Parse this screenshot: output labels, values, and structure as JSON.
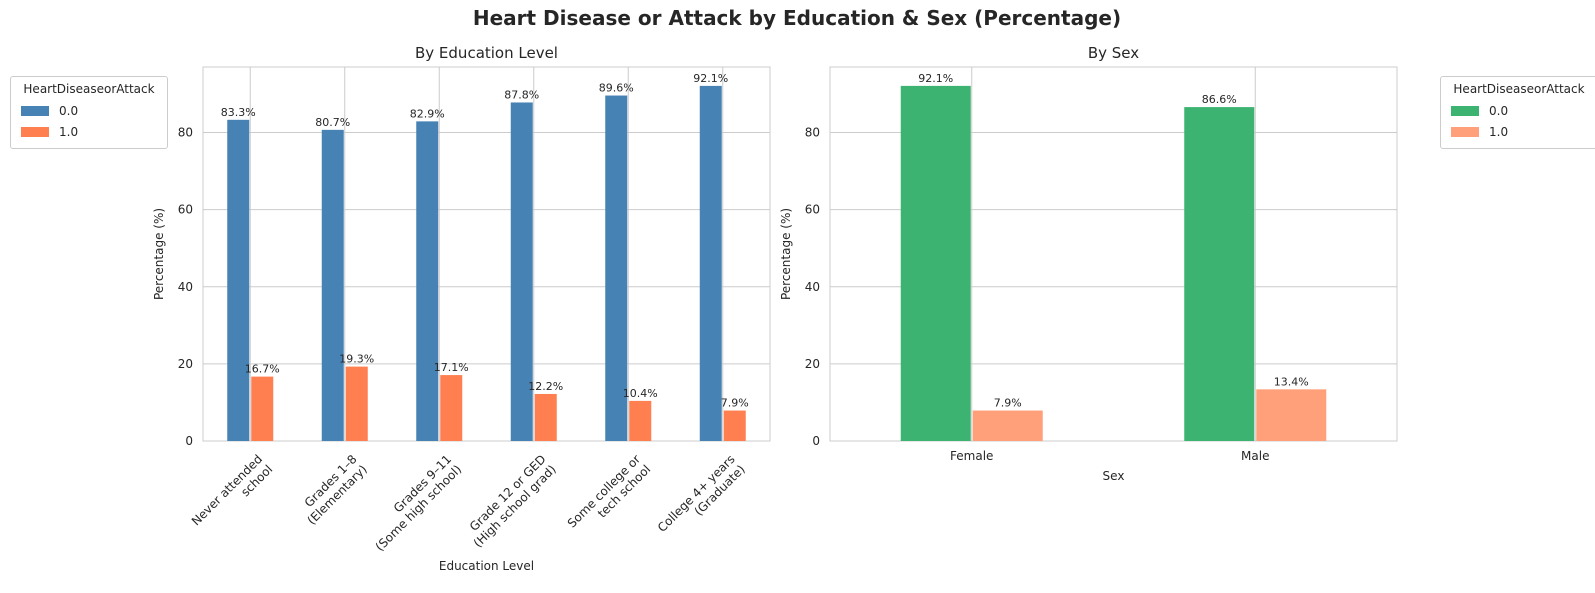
{
  "title": "Heart Disease or Attack by Education & Sex (Percentage)",
  "colors": {
    "edu_0": "#4682b4",
    "edu_1": "#ff7f50",
    "sex_0": "#3cb371",
    "sex_1": "#ffa07a",
    "grid": "#cccccc",
    "text": "#262626"
  },
  "legend": {
    "title": "HeartDiseaseorAttack",
    "entries": [
      "0.0",
      "1.0"
    ]
  },
  "chart_data": [
    {
      "type": "bar",
      "title": "By Education Level",
      "xlabel": "Education Level",
      "ylabel": "Percentage (%)",
      "ylim": [
        0,
        97
      ],
      "yticks": [
        0,
        20,
        40,
        60,
        80
      ],
      "grid": true,
      "legend_position": "outside-left",
      "categories": [
        [
          "Never attended",
          "school"
        ],
        [
          "Grades 1–8",
          "(Elementary)"
        ],
        [
          "Grades 9–11",
          "(Some high school)"
        ],
        [
          "Grade 12 or GED",
          "(High school grad)"
        ],
        [
          "Some college or",
          "tech school"
        ],
        [
          "College 4+ years",
          "(Graduate)"
        ]
      ],
      "series": [
        {
          "name": "0.0",
          "values": [
            83.3,
            80.7,
            82.9,
            87.8,
            89.6,
            92.1
          ],
          "labels": [
            "83.3%",
            "80.7%",
            "82.9%",
            "87.8%",
            "89.6%",
            "92.1%"
          ]
        },
        {
          "name": "1.0",
          "values": [
            16.7,
            19.3,
            17.1,
            12.2,
            10.4,
            7.9
          ],
          "labels": [
            "16.7%",
            "19.3%",
            "17.1%",
            "12.2%",
            "10.4%",
            "7.9%"
          ]
        }
      ]
    },
    {
      "type": "bar",
      "title": "By Sex",
      "xlabel": "Sex",
      "ylabel": "Percentage (%)",
      "ylim": [
        0,
        97
      ],
      "yticks": [
        0,
        20,
        40,
        60,
        80
      ],
      "grid": true,
      "legend_position": "outside-right",
      "categories": [
        [
          "Female"
        ],
        [
          "Male"
        ]
      ],
      "series": [
        {
          "name": "0.0",
          "values": [
            92.1,
            86.6
          ],
          "labels": [
            "92.1%",
            "86.6%"
          ]
        },
        {
          "name": "1.0",
          "values": [
            7.9,
            13.4
          ],
          "labels": [
            "7.9%",
            "13.4%"
          ]
        }
      ]
    }
  ]
}
